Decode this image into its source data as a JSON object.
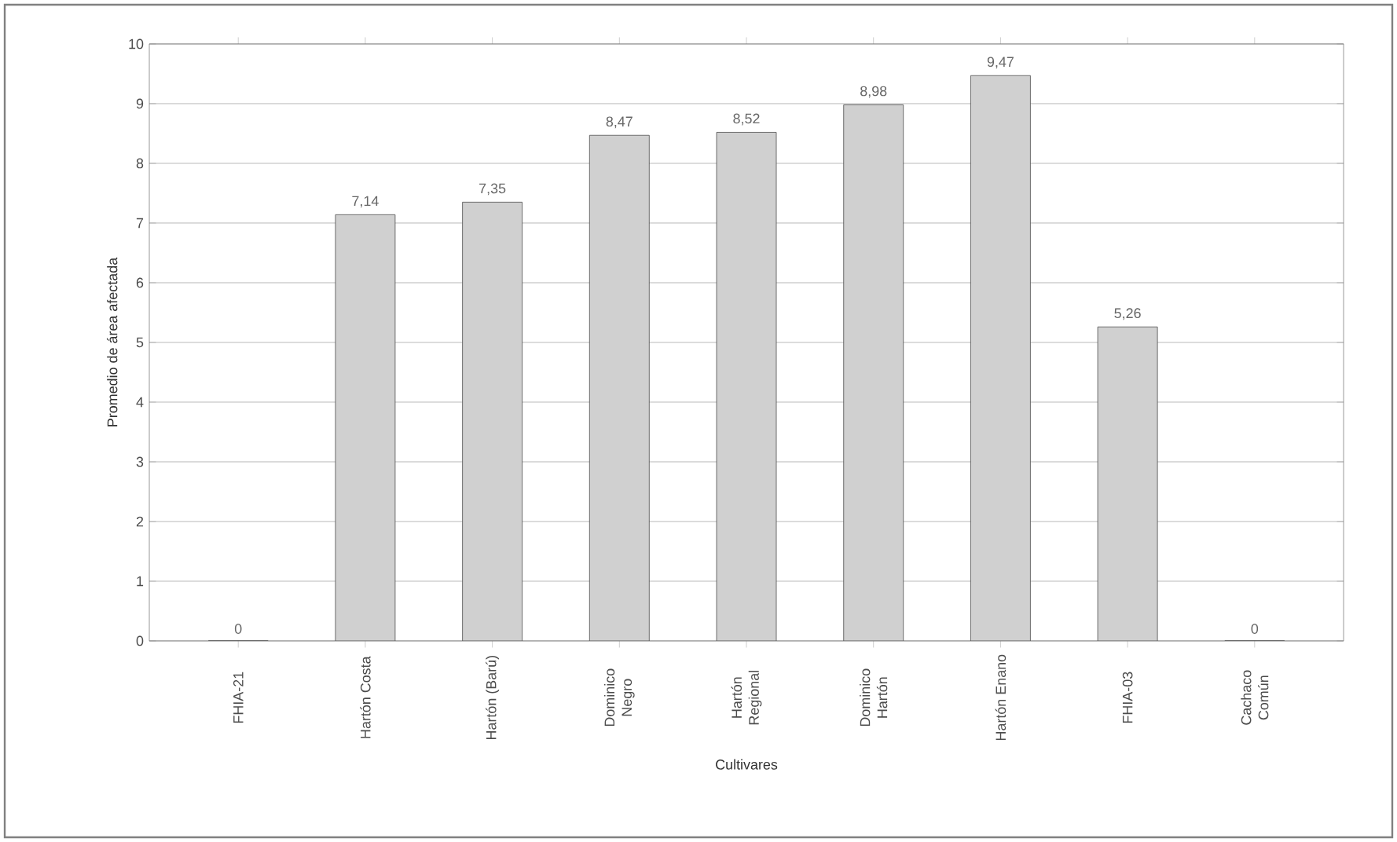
{
  "chart_data": {
    "type": "bar",
    "xlabel": "Cultivares",
    "ylabel": "Promedio de área afectada",
    "categories": [
      "FHIA-21",
      "Hartón Costa",
      "Hartón (Barú)",
      "Dominico Negro",
      "Hartón Regional",
      "Dominico Hartón",
      "Hartón Enano",
      "FHIA-03",
      "Cachaco Común"
    ],
    "values": [
      0,
      7.14,
      7.35,
      8.47,
      8.52,
      8.98,
      9.47,
      5.26,
      0
    ],
    "color": "#d0d0d0",
    "data_labels": true,
    "value_labels": [
      "0",
      "7,14",
      "7,35",
      "8,47",
      "8,52",
      "8,98",
      "9,47",
      "5,26",
      "0"
    ],
    "ylim": [
      0,
      10
    ],
    "yticks": [
      0,
      1,
      2,
      3,
      4,
      5,
      6,
      7,
      8,
      9,
      10
    ],
    "grid": "y"
  }
}
